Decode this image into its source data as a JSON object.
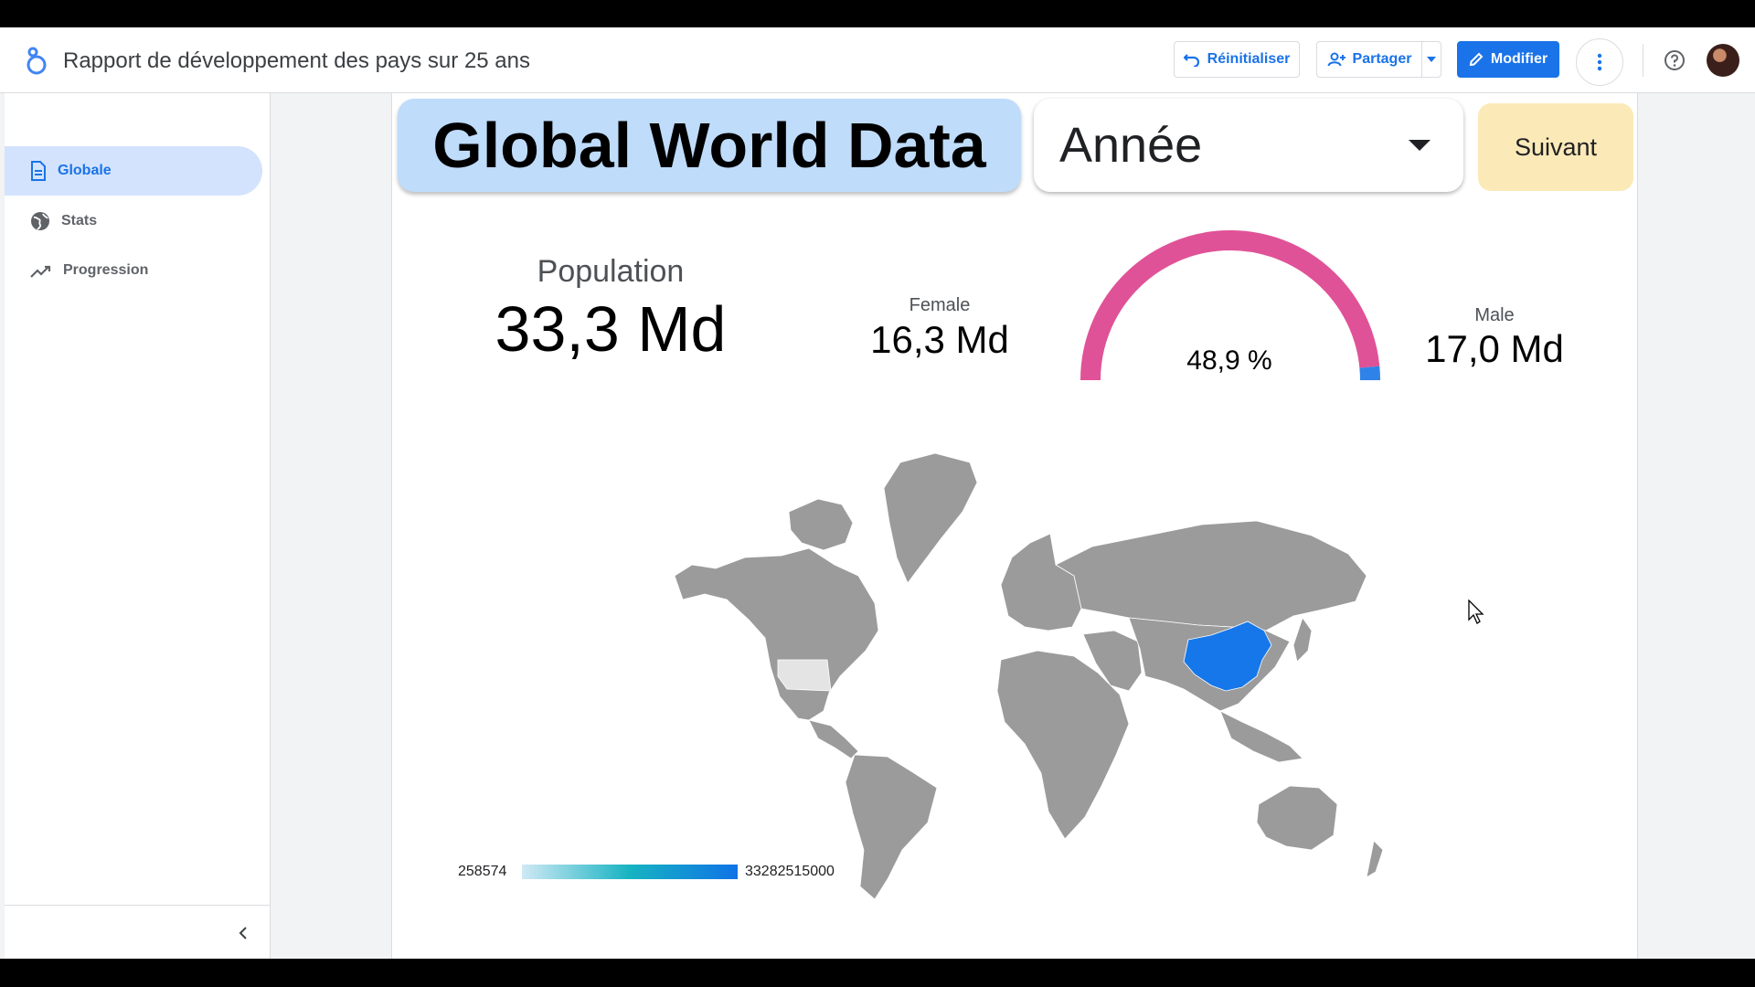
{
  "header": {
    "report_title": "Rapport de développement des pays sur 25 ans",
    "reset_label": "Réinitialiser",
    "share_label": "Partager",
    "edit_label": "Modifier"
  },
  "sidebar": {
    "items": [
      {
        "label": "Globale",
        "icon": "document-icon",
        "active": true
      },
      {
        "label": "Stats",
        "icon": "globe-icon",
        "active": false
      },
      {
        "label": "Progression",
        "icon": "trend-icon",
        "active": false
      }
    ]
  },
  "dashboard": {
    "title": "Global World Data",
    "year_select_label": "Année",
    "next_label": "Suivant",
    "population_label": "Population",
    "population_value": "33,3 Md",
    "female_label": "Female",
    "female_value": "16,3 Md",
    "male_label": "Male",
    "male_value": "17,0 Md",
    "gauge_value": "48,9 %",
    "gauge_fraction": 0.489,
    "legend_min": "258574",
    "legend_max": "33282515000"
  },
  "colors": {
    "accent": "#1a73e8",
    "gauge_pink": "#e05297",
    "gauge_blue": "#2f83e8",
    "map_land": "#9b9b9b",
    "map_highlight": "#1677ea",
    "title_bg": "#bfdcfb",
    "next_bg": "#fbeab8"
  }
}
